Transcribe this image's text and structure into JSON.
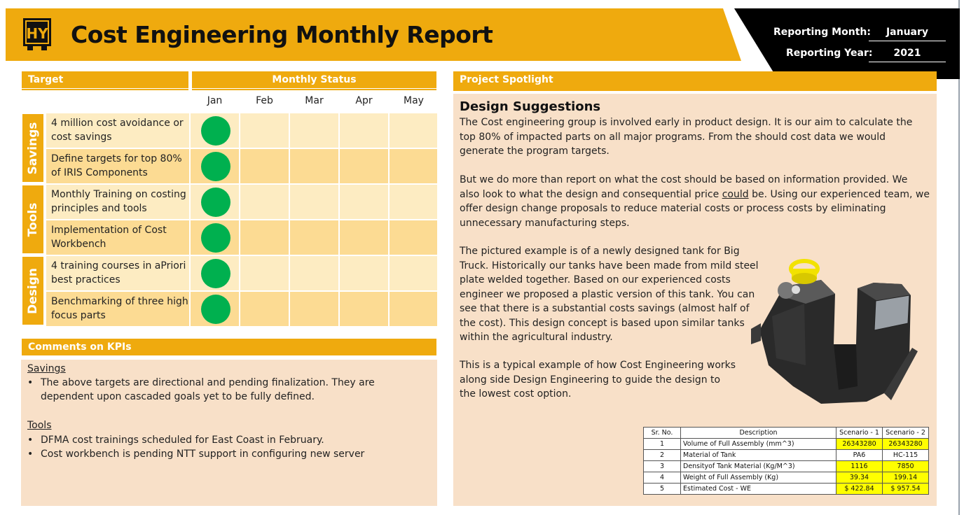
{
  "header": {
    "title": "Cost Engineering Monthly Report",
    "logo_text": "HY",
    "reporting_month_label": "Reporting Month:",
    "reporting_month": "January",
    "reporting_year_label": "Reporting Year:",
    "reporting_year": "2021"
  },
  "kpi": {
    "target_header": "Target",
    "status_header": "Monthly Status",
    "months": [
      "Jan",
      "Feb",
      "Mar",
      "Apr",
      "May"
    ],
    "groups": [
      "Savings",
      "Tools",
      "Design"
    ],
    "rows": [
      {
        "text": "4 million cost avoidance or cost savings",
        "jan_status": "green"
      },
      {
        "text": "Define targets for top 80% of IRIS Components",
        "jan_status": "green"
      },
      {
        "text": "Monthly Training on costing principles and tools",
        "jan_status": "green"
      },
      {
        "text": "Implementation of Cost Workbench",
        "jan_status": "green"
      },
      {
        "text": "4 training courses in aPriori best practices",
        "jan_status": "green"
      },
      {
        "text": "Benchmarking of three high focus parts",
        "jan_status": "green"
      }
    ]
  },
  "comments": {
    "header": "Comments on KPIs",
    "savings_title": "Savings",
    "savings_items": [
      "The above targets are directional and pending finalization. They are dependent upon cascaded goals yet to be fully defined."
    ],
    "tools_title": "Tools",
    "tools_items": [
      "DFMA cost trainings scheduled for East Coast in February.",
      "Cost workbench is pending NTT support in configuring new server"
    ]
  },
  "spotlight": {
    "header": "Project Spotlight",
    "title": "Design Suggestions",
    "p1": "The Cost engineering group is involved early in product design. It is our aim to calculate the top 80% of impacted parts on all major programs. From the should cost data we would generate the program targets.",
    "p2_a": "But we do more than report on what the cost should be based on information provided. We also look to what the design and consequential price ",
    "p2_u": "could",
    "p2_b": " be. Using our experienced team, we offer design change proposals to reduce material costs or process costs by eliminating unnecessary manufacturing steps.",
    "p3": "The pictured example is of a newly designed tank for Big Truck. Historically our tanks have been made from mild steel plate welded together. Based on our experienced costs engineer we proposed a plastic version of this tank. You can see that there is a substantial costs savings (almost half of the cost). This design concept is based upon similar tanks within the agricultural industry.",
    "p4": "This is a typical example of how Cost Engineering works along side Design Engineering to guide the design to the lowest cost option."
  },
  "table": {
    "headers": [
      "Sr. No.",
      "Description",
      "Scenario - 1",
      "Scenario - 2"
    ],
    "rows": [
      [
        "1",
        "Volume of Full Assembly (mm^3)",
        "26343280",
        "26343280"
      ],
      [
        "2",
        "Material of Tank",
        "PA6",
        "HC-115"
      ],
      [
        "3",
        "Densityof Tank Material (Kg/M^3)",
        "1116",
        "7850"
      ],
      [
        "4",
        "Weight of Full Assembly (Kg)",
        "39.34",
        "199.14"
      ],
      [
        "5",
        "Estimated Cost - WE",
        "$ 422.84",
        "$ 957.54"
      ]
    ]
  },
  "colors": {
    "accent": "#efaa0e",
    "status_green": "#00b04f",
    "panel": "#f8e0c8",
    "highlight": "#ffff00"
  }
}
